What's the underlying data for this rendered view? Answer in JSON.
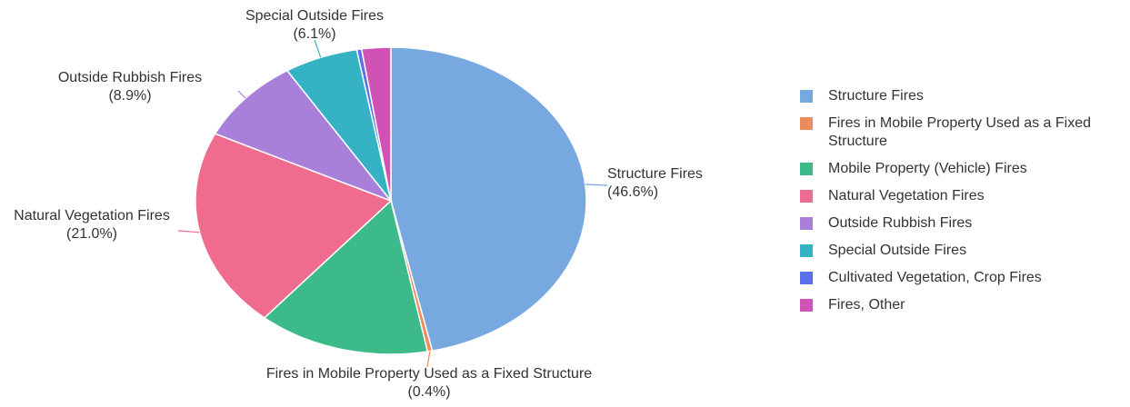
{
  "chart_data": {
    "type": "pie",
    "categories": [
      "Structure Fires",
      "Fires in Mobile Property Used as a Fixed Structure",
      "Mobile Property (Vehicle) Fires",
      "Natural Vegetation Fires",
      "Outside Rubbish Fires",
      "Special Outside Fires",
      "Cultivated Vegetation, Crop Fires",
      "Fires, Other"
    ],
    "values": [
      46.6,
      0.4,
      14.2,
      21.0,
      8.9,
      6.1,
      0.4,
      2.4
    ],
    "value_labels": [
      "(46.6%)",
      "(0.4%)",
      null,
      "(21.0%)",
      "(8.9%)",
      "(6.1%)",
      null,
      null
    ],
    "colors": [
      "#77a9e0",
      "#ef8a5a",
      "#3dba8a",
      "#f06c8e",
      "#a87fd9",
      "#35b3c4",
      "#5b6fe8",
      "#d052b5"
    ],
    "legend": "right"
  }
}
